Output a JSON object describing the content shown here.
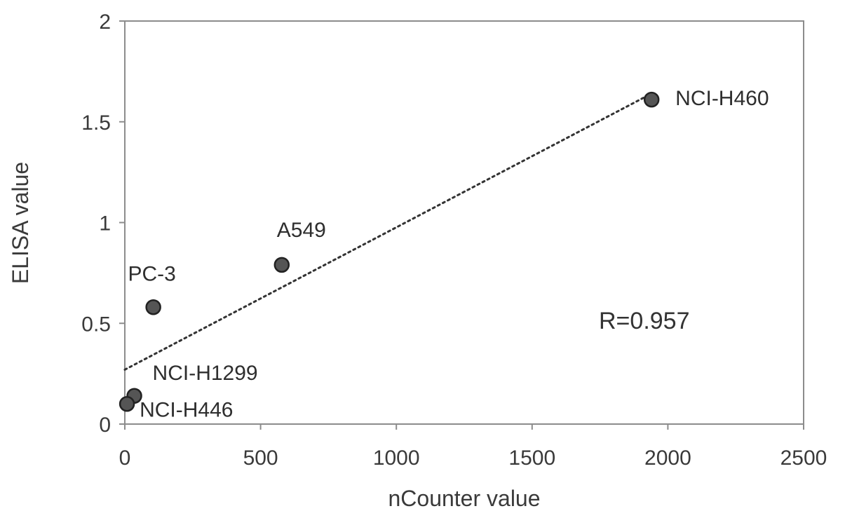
{
  "chart_data": {
    "type": "scatter",
    "title": "",
    "xlabel": "nCounter value",
    "ylabel": "ELISA value",
    "xlim": [
      0,
      2500
    ],
    "ylim": [
      0,
      2
    ],
    "x_ticks": [
      0,
      500,
      1000,
      1500,
      2000,
      2500
    ],
    "y_ticks": [
      0,
      0.5,
      1,
      1.5,
      2
    ],
    "x_tick_labels": [
      "0",
      "500",
      "1000",
      "1500",
      "2000",
      "2500"
    ],
    "y_tick_labels": [
      "0",
      "0.5",
      "1",
      "1.5",
      "2"
    ],
    "grid": false,
    "points": [
      {
        "label": "NCI-H460",
        "x": 1940,
        "y": 1.61
      },
      {
        "label": "A549",
        "x": 578,
        "y": 0.79
      },
      {
        "label": "PC-3",
        "x": 105,
        "y": 0.58
      },
      {
        "label": "NCI-H1299",
        "x": 35,
        "y": 0.14
      },
      {
        "label": "NCI-H446",
        "x": 8,
        "y": 0.1
      }
    ],
    "trendline": {
      "style": "dotted",
      "x": [
        0,
        1940
      ],
      "y": [
        0.27,
        1.64
      ]
    },
    "annotation": "R=0.957",
    "colors": {
      "marker_fill": "#555555",
      "marker_stroke": "#222222",
      "trendline": "#333333",
      "frame": "#8c8c8c"
    }
  }
}
